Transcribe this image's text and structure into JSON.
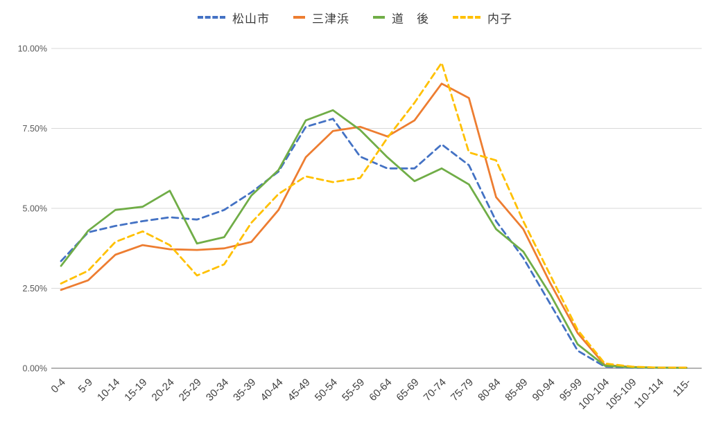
{
  "chart_data": {
    "type": "line",
    "title": "",
    "xlabel": "",
    "ylabel": "",
    "ylim": [
      0,
      10
    ],
    "grid": true,
    "legend_position": "top",
    "categories": [
      "0-4",
      "5-9",
      "10-14",
      "15-19",
      "20-24",
      "25-29",
      "30-34",
      "35-39",
      "40-44",
      "45-49",
      "50-54",
      "55-59",
      "60-64",
      "65-69",
      "70-74",
      "75-79",
      "80-84",
      "85-89",
      "90-94",
      "95-99",
      "100-104",
      "105-109",
      "110-114",
      "115-"
    ],
    "yticks": [
      {
        "label": "10.00%",
        "value": 10
      },
      {
        "label": "7.50%",
        "value": 7.5
      },
      {
        "label": "5.00%",
        "value": 5
      },
      {
        "label": "2.50%",
        "value": 2.5
      },
      {
        "label": "0.00%",
        "value": 0
      }
    ],
    "series": [
      {
        "name": "松山市",
        "color": "#4472C4",
        "dash": true,
        "values": [
          3.35,
          4.25,
          4.45,
          4.6,
          4.72,
          4.65,
          4.95,
          5.5,
          6.15,
          7.55,
          7.8,
          6.62,
          6.25,
          6.25,
          7.0,
          6.35,
          4.6,
          3.45,
          2.0,
          0.55,
          0.05,
          0.02,
          0.01,
          0.01
        ]
      },
      {
        "name": "三津浜",
        "color": "#ED7D31",
        "dash": false,
        "values": [
          2.45,
          2.75,
          3.55,
          3.85,
          3.72,
          3.7,
          3.75,
          3.95,
          4.95,
          6.6,
          7.42,
          7.55,
          7.25,
          7.75,
          8.9,
          8.45,
          5.35,
          4.35,
          2.65,
          1.1,
          0.1,
          0.04,
          0.02,
          0.02
        ]
      },
      {
        "name": "道　後",
        "color": "#70AD47",
        "dash": false,
        "values": [
          3.2,
          4.3,
          4.95,
          5.05,
          5.55,
          3.9,
          4.1,
          5.4,
          6.2,
          7.75,
          8.07,
          7.45,
          6.6,
          5.85,
          6.25,
          5.75,
          4.35,
          3.65,
          2.3,
          0.75,
          0.08,
          0.03,
          0.02,
          0.01
        ]
      },
      {
        "name": "内子",
        "color": "#FFC000",
        "dash": true,
        "values": [
          2.65,
          3.05,
          3.95,
          4.28,
          3.85,
          2.9,
          3.25,
          4.55,
          5.45,
          6.0,
          5.82,
          5.95,
          7.2,
          8.3,
          9.55,
          6.75,
          6.5,
          4.6,
          2.9,
          1.2,
          0.15,
          0.05,
          0.02,
          0.02
        ]
      }
    ]
  },
  "colors": {
    "grid": "#d9d9d9",
    "axis": "#9a9a9a",
    "ytick_text": "#595959",
    "xtick_text": "#3f3f3f"
  }
}
